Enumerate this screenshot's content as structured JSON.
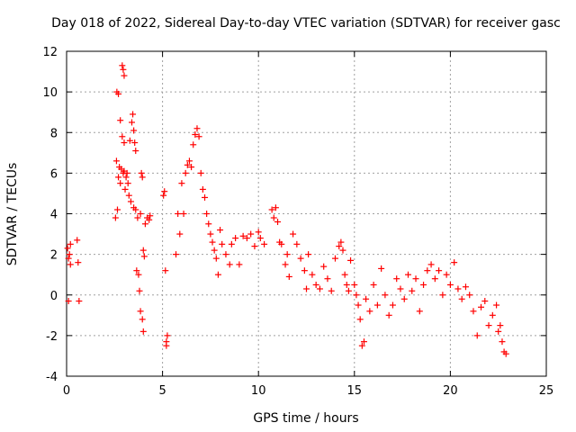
{
  "chart_data": {
    "type": "scatter",
    "title": "Day 018 of 2022, Sidereal Day-to-day VTEC variation (SDTVAR) for receiver gasc",
    "xlabel": "GPS time / hours",
    "ylabel": "SDTVAR / TECUs",
    "xlim": [
      0,
      25
    ],
    "ylim": [
      -4,
      12
    ],
    "xticks": [
      0,
      5,
      10,
      15,
      20,
      25
    ],
    "yticks": [
      -4,
      -2,
      0,
      2,
      4,
      6,
      8,
      10,
      12
    ],
    "grid": true,
    "marker": "+",
    "colors": {
      "series": "#ff0000",
      "grid": "#a0a0a0",
      "axis": "#000000"
    },
    "series": [
      {
        "name": "SDTVAR",
        "points": [
          [
            0.05,
            2.3
          ],
          [
            0.1,
            1.8
          ],
          [
            0.1,
            -0.3
          ],
          [
            0.15,
            2.0
          ],
          [
            0.2,
            1.5
          ],
          [
            0.2,
            2.5
          ],
          [
            0.55,
            2.7
          ],
          [
            0.6,
            1.6
          ],
          [
            0.65,
            -0.3
          ],
          [
            2.55,
            3.8
          ],
          [
            2.6,
            6.6
          ],
          [
            2.62,
            10.0
          ],
          [
            2.65,
            4.2
          ],
          [
            2.7,
            9.9
          ],
          [
            2.7,
            5.8
          ],
          [
            2.75,
            6.3
          ],
          [
            2.8,
            8.6
          ],
          [
            2.8,
            5.5
          ],
          [
            2.85,
            6.2
          ],
          [
            2.9,
            11.3
          ],
          [
            2.9,
            7.8
          ],
          [
            2.95,
            11.1
          ],
          [
            2.95,
            6.0
          ],
          [
            3.0,
            10.8
          ],
          [
            3.0,
            7.5
          ],
          [
            3.0,
            6.1
          ],
          [
            3.05,
            5.2
          ],
          [
            3.1,
            5.8
          ],
          [
            3.15,
            6.0
          ],
          [
            3.2,
            5.5
          ],
          [
            3.25,
            4.9
          ],
          [
            3.3,
            7.6
          ],
          [
            3.35,
            4.6
          ],
          [
            3.4,
            8.5
          ],
          [
            3.45,
            8.9
          ],
          [
            3.5,
            4.3
          ],
          [
            3.5,
            8.1
          ],
          [
            3.55,
            7.5
          ],
          [
            3.6,
            7.1
          ],
          [
            3.6,
            4.2
          ],
          [
            3.65,
            1.2
          ],
          [
            3.7,
            3.8
          ],
          [
            3.75,
            1.0
          ],
          [
            3.8,
            0.2
          ],
          [
            3.85,
            4.0
          ],
          [
            3.85,
            -0.8
          ],
          [
            3.9,
            6.0
          ],
          [
            3.95,
            5.8
          ],
          [
            3.95,
            -1.2
          ],
          [
            4.0,
            2.2
          ],
          [
            4.0,
            -1.8
          ],
          [
            4.05,
            1.9
          ],
          [
            4.1,
            3.5
          ],
          [
            4.2,
            3.8
          ],
          [
            4.3,
            3.7
          ],
          [
            4.35,
            3.9
          ],
          [
            5.05,
            4.9
          ],
          [
            5.1,
            5.1
          ],
          [
            5.15,
            1.2
          ],
          [
            5.2,
            -2.3
          ],
          [
            5.25,
            -2.0
          ],
          [
            5.2,
            -2.5
          ],
          [
            5.7,
            2.0
          ],
          [
            5.8,
            4.0
          ],
          [
            5.9,
            3.0
          ],
          [
            6.0,
            5.5
          ],
          [
            6.1,
            4.0
          ],
          [
            6.2,
            6.0
          ],
          [
            6.3,
            6.4
          ],
          [
            6.4,
            6.6
          ],
          [
            6.5,
            6.3
          ],
          [
            6.6,
            7.4
          ],
          [
            6.7,
            7.9
          ],
          [
            6.8,
            8.2
          ],
          [
            6.9,
            7.8
          ],
          [
            7.0,
            6.0
          ],
          [
            7.1,
            5.2
          ],
          [
            7.2,
            4.8
          ],
          [
            7.3,
            4.0
          ],
          [
            7.4,
            3.5
          ],
          [
            7.5,
            3.0
          ],
          [
            7.6,
            2.6
          ],
          [
            7.7,
            2.2
          ],
          [
            7.8,
            1.8
          ],
          [
            7.9,
            1.0
          ],
          [
            8.0,
            3.2
          ],
          [
            8.1,
            2.5
          ],
          [
            8.3,
            2.0
          ],
          [
            8.5,
            1.5
          ],
          [
            8.6,
            2.5
          ],
          [
            8.8,
            2.8
          ],
          [
            9.0,
            1.5
          ],
          [
            9.2,
            2.9
          ],
          [
            9.4,
            2.8
          ],
          [
            9.6,
            3.0
          ],
          [
            9.8,
            2.4
          ],
          [
            10.0,
            3.1
          ],
          [
            10.1,
            2.8
          ],
          [
            10.3,
            2.5
          ],
          [
            10.7,
            4.2
          ],
          [
            10.8,
            3.8
          ],
          [
            10.9,
            4.3
          ],
          [
            11.0,
            3.6
          ],
          [
            11.1,
            2.6
          ],
          [
            11.2,
            2.5
          ],
          [
            11.4,
            1.5
          ],
          [
            11.5,
            2.0
          ],
          [
            11.6,
            0.9
          ],
          [
            11.8,
            3.0
          ],
          [
            12.0,
            2.5
          ],
          [
            12.2,
            1.8
          ],
          [
            12.4,
            1.2
          ],
          [
            12.5,
            0.3
          ],
          [
            12.6,
            2.0
          ],
          [
            12.8,
            1.0
          ],
          [
            13.0,
            0.5
          ],
          [
            13.2,
            0.3
          ],
          [
            13.4,
            1.4
          ],
          [
            13.6,
            0.8
          ],
          [
            13.8,
            0.2
          ],
          [
            14.0,
            1.8
          ],
          [
            14.2,
            2.4
          ],
          [
            14.3,
            2.6
          ],
          [
            14.4,
            2.2
          ],
          [
            14.5,
            1.0
          ],
          [
            14.6,
            0.5
          ],
          [
            14.7,
            0.2
          ],
          [
            14.8,
            1.7
          ],
          [
            15.0,
            0.5
          ],
          [
            15.1,
            0.0
          ],
          [
            15.2,
            -0.5
          ],
          [
            15.3,
            -1.2
          ],
          [
            15.4,
            -2.5
          ],
          [
            15.5,
            -2.3
          ],
          [
            15.6,
            -0.2
          ],
          [
            15.8,
            -0.8
          ],
          [
            16.0,
            0.5
          ],
          [
            16.2,
            -0.5
          ],
          [
            16.4,
            1.3
          ],
          [
            16.6,
            0.0
          ],
          [
            16.8,
            -1.0
          ],
          [
            17.0,
            -0.5
          ],
          [
            17.2,
            0.8
          ],
          [
            17.4,
            0.3
          ],
          [
            17.6,
            -0.2
          ],
          [
            17.8,
            1.0
          ],
          [
            18.0,
            0.2
          ],
          [
            18.2,
            0.8
          ],
          [
            18.4,
            -0.8
          ],
          [
            18.6,
            0.5
          ],
          [
            18.8,
            1.2
          ],
          [
            19.0,
            1.5
          ],
          [
            19.2,
            0.8
          ],
          [
            19.4,
            1.2
          ],
          [
            19.6,
            0.0
          ],
          [
            19.8,
            1.0
          ],
          [
            20.0,
            0.5
          ],
          [
            20.2,
            1.6
          ],
          [
            20.4,
            0.3
          ],
          [
            20.6,
            -0.2
          ],
          [
            20.8,
            0.4
          ],
          [
            21.0,
            0.0
          ],
          [
            21.2,
            -0.8
          ],
          [
            21.4,
            -2.0
          ],
          [
            21.6,
            -0.6
          ],
          [
            21.8,
            -0.3
          ],
          [
            22.0,
            -1.5
          ],
          [
            22.2,
            -1.0
          ],
          [
            22.4,
            -0.5
          ],
          [
            22.5,
            -1.8
          ],
          [
            22.6,
            -1.5
          ],
          [
            22.7,
            -2.3
          ],
          [
            22.8,
            -2.8
          ],
          [
            22.9,
            -2.9
          ]
        ]
      }
    ]
  }
}
